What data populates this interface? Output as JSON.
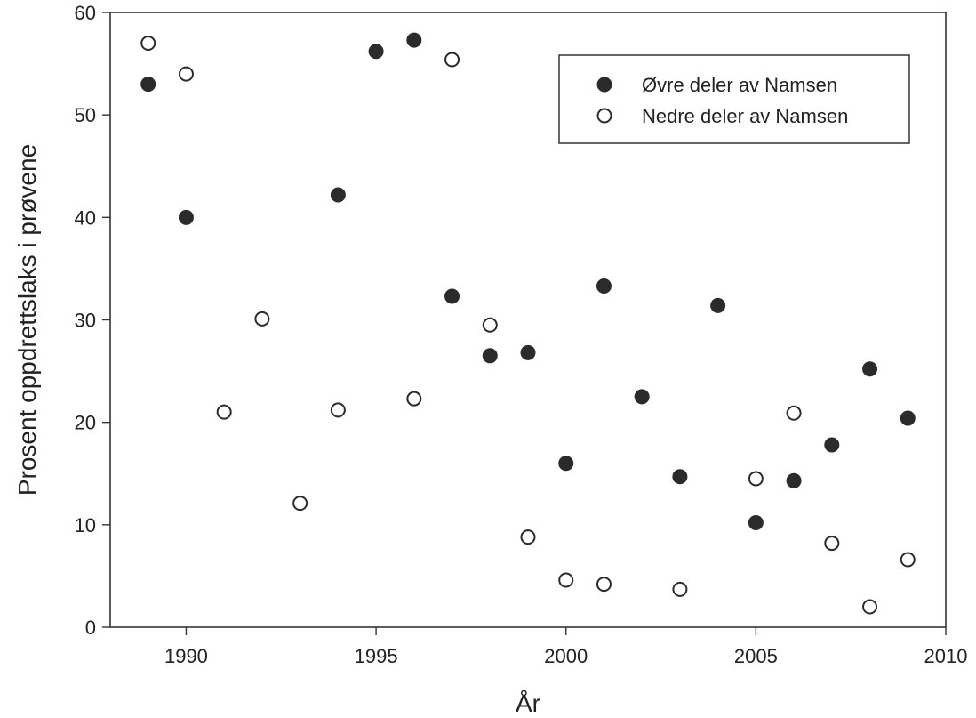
{
  "chart_data": {
    "type": "scatter",
    "title": "",
    "xlabel": "År",
    "ylabel": "Prosent oppdrettslaks i prøvene",
    "xlim": [
      1988,
      2010
    ],
    "ylim": [
      0,
      60
    ],
    "xticks": [
      1990,
      1995,
      2000,
      2005,
      2010
    ],
    "yticks": [
      0,
      10,
      20,
      30,
      40,
      50,
      60
    ],
    "grid": false,
    "legend_position": "top-right",
    "series": [
      {
        "name": "Øvre deler av Namsen",
        "marker": "filled-circle",
        "color": "#2b2b2b",
        "points": [
          {
            "x": 1989,
            "y": 53
          },
          {
            "x": 1990,
            "y": 40
          },
          {
            "x": 1994,
            "y": 42.2
          },
          {
            "x": 1995,
            "y": 56.2
          },
          {
            "x": 1996,
            "y": 57.3
          },
          {
            "x": 1997,
            "y": 32.3
          },
          {
            "x": 1998,
            "y": 26.5
          },
          {
            "x": 1999,
            "y": 26.8
          },
          {
            "x": 2000,
            "y": 16
          },
          {
            "x": 2001,
            "y": 33.3
          },
          {
            "x": 2002,
            "y": 22.5
          },
          {
            "x": 2003,
            "y": 14.7
          },
          {
            "x": 2004,
            "y": 31.4
          },
          {
            "x": 2005,
            "y": 10.2
          },
          {
            "x": 2006,
            "y": 14.3
          },
          {
            "x": 2007,
            "y": 17.8
          },
          {
            "x": 2008,
            "y": 25.2
          },
          {
            "x": 2009,
            "y": 20.4
          }
        ]
      },
      {
        "name": "Nedre deler av Namsen",
        "marker": "open-circle",
        "color": "#2b2b2b",
        "points": [
          {
            "x": 1989,
            "y": 57
          },
          {
            "x": 1990,
            "y": 54
          },
          {
            "x": 1991,
            "y": 21
          },
          {
            "x": 1992,
            "y": 30.1
          },
          {
            "x": 1993,
            "y": 12.1
          },
          {
            "x": 1994,
            "y": 21.2
          },
          {
            "x": 1996,
            "y": 22.3
          },
          {
            "x": 1997,
            "y": 55.4
          },
          {
            "x": 1998,
            "y": 29.5
          },
          {
            "x": 1999,
            "y": 8.8
          },
          {
            "x": 2000,
            "y": 4.6
          },
          {
            "x": 2001,
            "y": 4.2
          },
          {
            "x": 2003,
            "y": 3.7
          },
          {
            "x": 2005,
            "y": 14.5
          },
          {
            "x": 2006,
            "y": 20.9
          },
          {
            "x": 2007,
            "y": 8.2
          },
          {
            "x": 2008,
            "y": 2
          },
          {
            "x": 2009,
            "y": 6.6
          }
        ]
      }
    ]
  }
}
